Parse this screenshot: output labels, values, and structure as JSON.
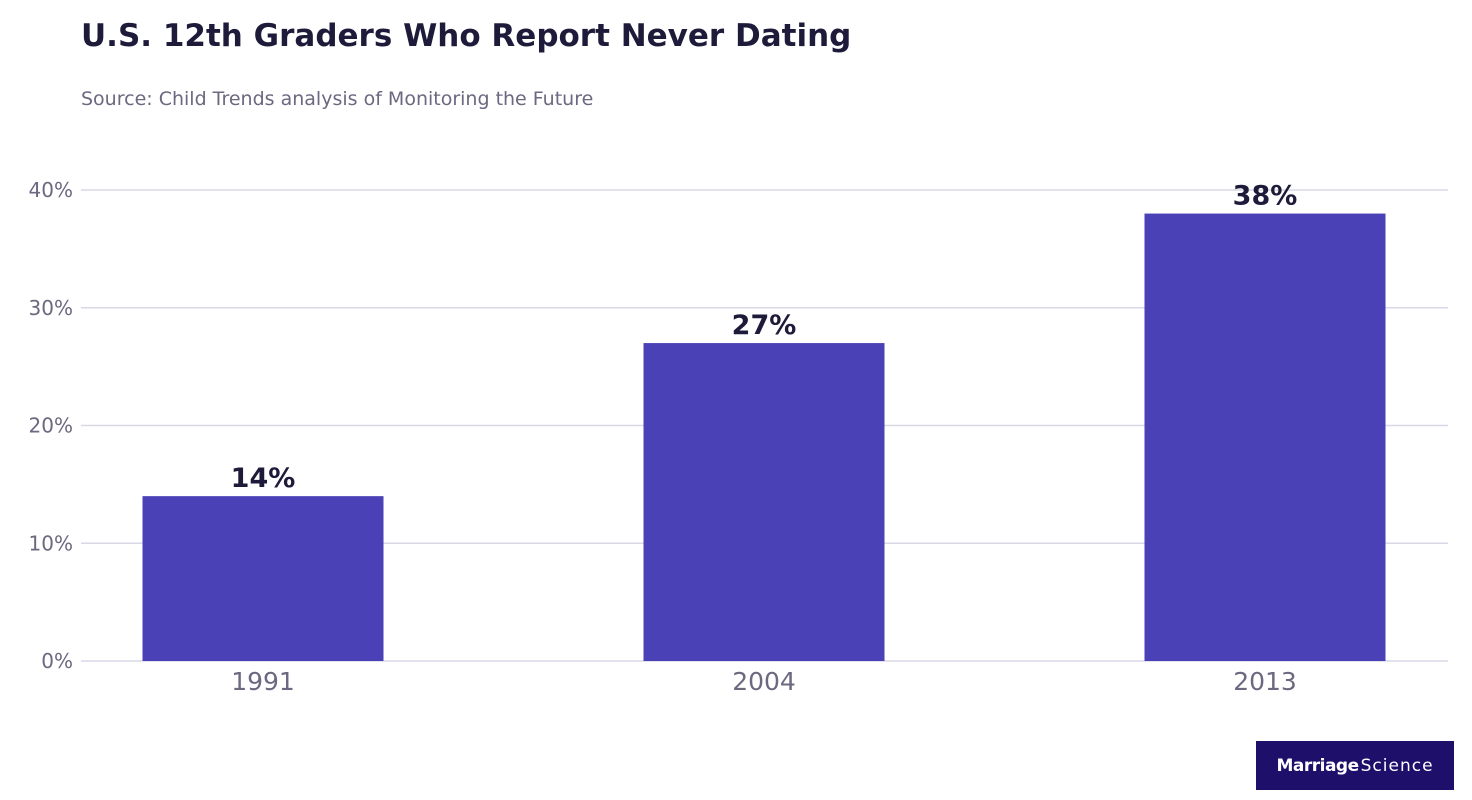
{
  "colors": {
    "bar": "#4b41b7",
    "gridline": "#d9d8e6",
    "axis_text": "#6b6880",
    "value_text": "#1e1b3a",
    "brand_bg": "#1e0f6b"
  },
  "brand": {
    "bold_part": "Marriage",
    "light_part": "Science"
  },
  "chart_data": {
    "type": "bar",
    "title": "U.S. 12th Graders Who Report Never Dating",
    "subtitle": "Source: Child Trends analysis of Monitoring the Future",
    "categories": [
      "1991",
      "2004",
      "2013"
    ],
    "values": [
      14,
      27,
      38
    ],
    "value_labels": [
      "14%",
      "27%",
      "38%"
    ],
    "ylim": [
      0,
      40
    ],
    "yticks": [
      0,
      10,
      20,
      30,
      40
    ],
    "ytick_labels": [
      "0%",
      "10%",
      "20%",
      "30%",
      "40%"
    ],
    "xlabel": "",
    "ylabel": "",
    "grid": true,
    "legend": "none"
  }
}
